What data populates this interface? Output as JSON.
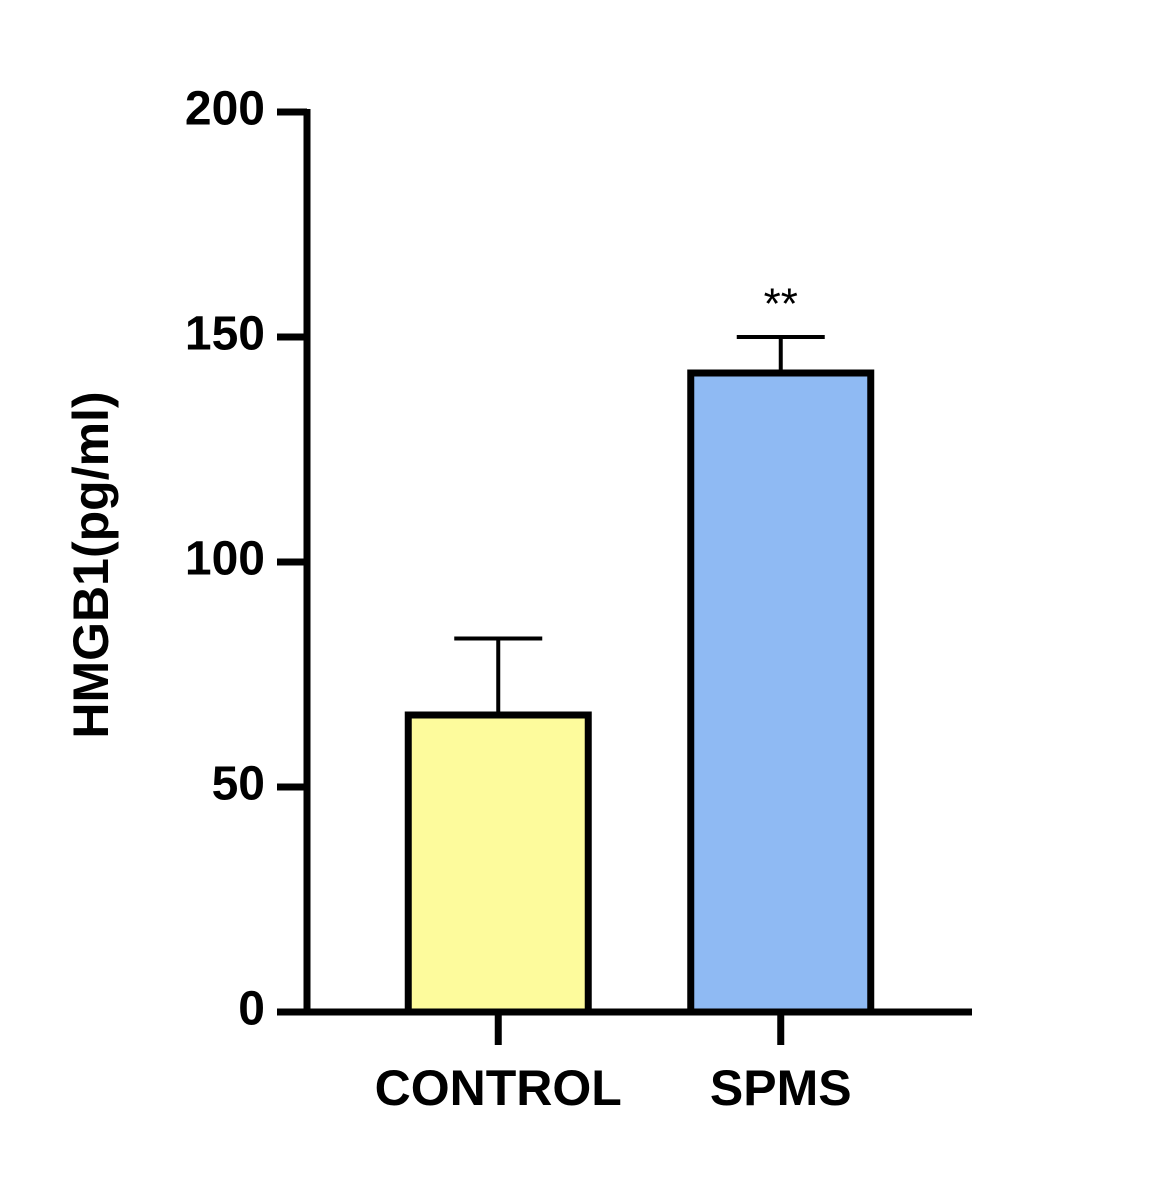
{
  "chart_data": {
    "type": "bar",
    "y_label": "HMGB1(pg/ml)",
    "categories": [
      "CONTROL",
      "SPMS"
    ],
    "values": [
      66,
      142
    ],
    "errors": [
      17,
      8
    ],
    "colors": [
      "#fdfb9c",
      "#8fbaf3"
    ],
    "ylim": [
      0,
      200
    ],
    "yticks": [
      0,
      50,
      100,
      150,
      200
    ],
    "annotations": [
      {
        "text": "**",
        "category": "SPMS"
      }
    ]
  }
}
